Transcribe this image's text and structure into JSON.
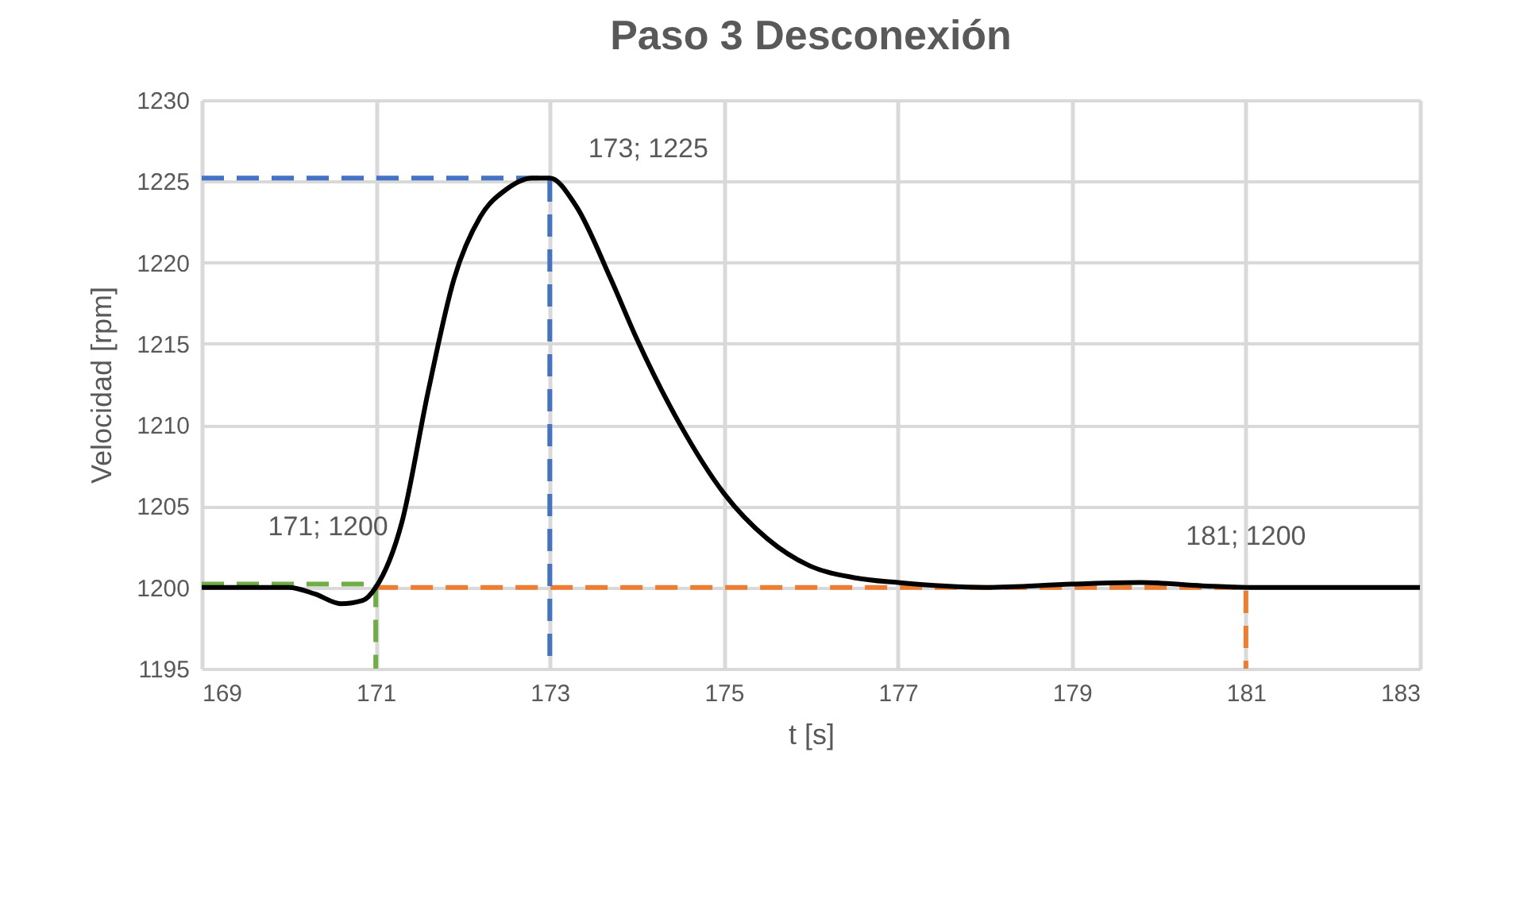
{
  "chart_data": {
    "type": "line",
    "title": "Paso 3 Desconexión",
    "xlabel": "t [s]",
    "ylabel": "Velocidad  [rpm]",
    "xlim": [
      169,
      183
    ],
    "xticks": [
      169,
      171,
      173,
      175,
      177,
      179,
      181,
      183
    ],
    "ylim": [
      1195,
      1230
    ],
    "yticks": [
      1195,
      1200,
      1205,
      1210,
      1215,
      1220,
      1225,
      1230
    ],
    "grid": true,
    "series": [
      {
        "color": "#000000",
        "line_style": "solid",
        "x": [
          169,
          170,
          170.3,
          170.6,
          170.85,
          171,
          171.3,
          171.6,
          171.9,
          172.2,
          172.5,
          172.8,
          173,
          173.3,
          173.7,
          174,
          174.5,
          175,
          175.5,
          176,
          176.5,
          177,
          178,
          179,
          179.8,
          180.5,
          181,
          182,
          183
        ],
        "values": [
          1200,
          1200,
          1199.6,
          1199,
          1199.2,
          1200,
          1204,
          1212,
          1219,
          1222.8,
          1224.5,
          1225.2,
          1225.2,
          1223.5,
          1219,
          1215.3,
          1210,
          1205.8,
          1203,
          1201.3,
          1200.6,
          1200.3,
          1200,
          1200.2,
          1200.3,
          1200.1,
          1200,
          1200,
          1200
        ]
      },
      {
        "color": "#4472c4",
        "line_style": "dashed",
        "x": [
          169,
          173,
          173
        ],
        "values": [
          1225.2,
          1225.2,
          1195
        ]
      },
      {
        "color": "#70ad47",
        "line_style": "dashed",
        "x": [
          169,
          171,
          171
        ],
        "values": [
          1200.2,
          1200.2,
          1195
        ]
      },
      {
        "color": "#ed7d31",
        "line_style": "dashed",
        "x": [
          171,
          181,
          181
        ],
        "values": [
          1200,
          1200,
          1195
        ]
      }
    ],
    "annotations": [
      {
        "text": "171; 1200",
        "x": 171,
        "y": 1200
      },
      {
        "text": "173; 1225",
        "x": 173,
        "y": 1225.2
      },
      {
        "text": "181; 1200",
        "x": 181,
        "y": 1200
      }
    ]
  }
}
